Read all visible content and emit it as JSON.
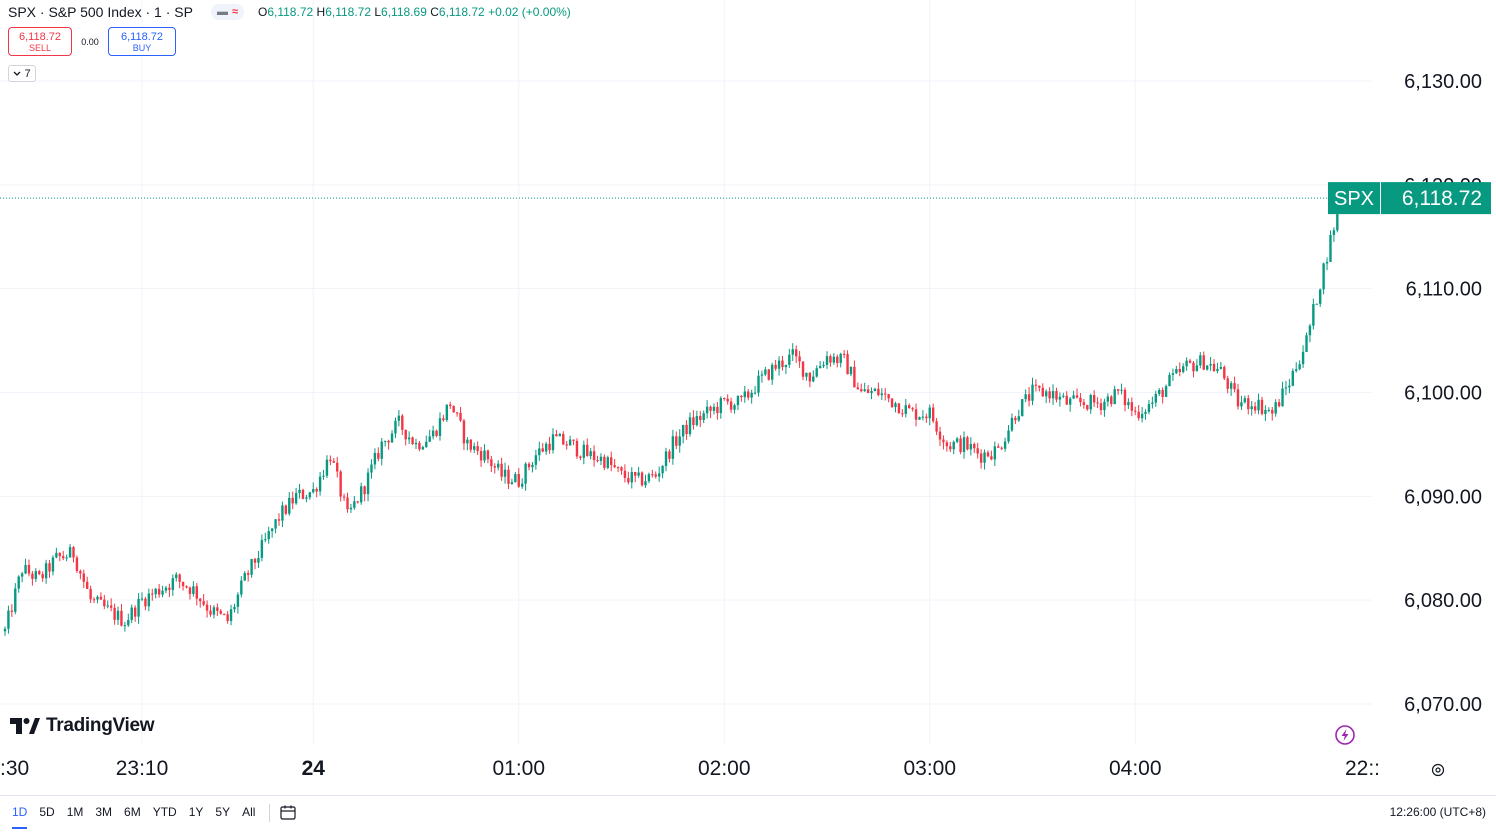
{
  "header": {
    "symbol_title": "SPX · S&P 500 Index · 1 · SP",
    "ohlc": {
      "o_label": "O",
      "o_value": "6,118.72",
      "h_label": "H",
      "h_value": "6,118.72",
      "l_label": "L",
      "l_value": "6,118.69",
      "c_label": "C",
      "c_value": "6,118.72",
      "change": "+0.02 (+0.00%)"
    }
  },
  "trade": {
    "sell_price": "6,118.72",
    "sell_label": "SELL",
    "spread": "0.00",
    "buy_price": "6,118.72",
    "buy_label": "BUY"
  },
  "indicators_toggle": {
    "count": "7"
  },
  "brand": {
    "name": "TradingView"
  },
  "bottom": {
    "ranges": [
      "1D",
      "5D",
      "1M",
      "3M",
      "6M",
      "YTD",
      "1Y",
      "5Y",
      "All"
    ],
    "active_range": "1D",
    "clock": "12:26:00 (UTC+8)"
  },
  "colors": {
    "up": "#089981",
    "down": "#f23645",
    "badge": "#089981",
    "accent": "#2962ff",
    "purple": "#9c27b0"
  },
  "chart_data": {
    "type": "candlestick",
    "interval": "1 minute",
    "y_ticks": [
      6130,
      6120,
      6110,
      6100,
      6090,
      6080,
      6070
    ],
    "y_tick_labels": [
      "6,130.00",
      "6,120.00",
      "6,110.00",
      "6,100.00",
      "6,090.00",
      "6,080.00",
      "6,070.00"
    ],
    "x_tick_labels": [
      ":30",
      "23:10",
      "24",
      "01:00",
      "02:00",
      "03:00",
      "04:00",
      "22::"
    ],
    "grid": true,
    "last_price": 6118.72,
    "last_price_label": "6,118.72",
    "last_price_symbol": "SPX",
    "path": [
      [
        "22:30",
        6077
      ],
      [
        "22:35",
        6083
      ],
      [
        "22:40",
        6082
      ],
      [
        "22:45",
        6084
      ],
      [
        "22:50",
        6084.5
      ],
      [
        "22:55",
        6080
      ],
      [
        "23:00",
        6079
      ],
      [
        "23:05",
        6078
      ],
      [
        "23:10",
        6080
      ],
      [
        "23:15",
        6081
      ],
      [
        "23:20",
        6082
      ],
      [
        "23:25",
        6081
      ],
      [
        "23:30",
        6079
      ],
      [
        "23:35",
        6078
      ],
      [
        "23:40",
        6082
      ],
      [
        "23:45",
        6085
      ],
      [
        "23:50",
        6088
      ],
      [
        "23:55",
        6090
      ],
      [
        "00:00",
        6090.5
      ],
      [
        "00:05",
        6094
      ],
      [
        "00:10",
        6088
      ],
      [
        "00:15",
        6091
      ],
      [
        "00:20",
        6095
      ],
      [
        "00:25",
        6097
      ],
      [
        "00:30",
        6095
      ],
      [
        "00:35",
        6096
      ],
      [
        "00:40",
        6099
      ],
      [
        "00:45",
        6095
      ],
      [
        "00:50",
        6094
      ],
      [
        "00:55",
        6092
      ],
      [
        "01:00",
        6091.5
      ],
      [
        "01:05",
        6094
      ],
      [
        "01:10",
        6095.5
      ],
      [
        "01:15",
        6095
      ],
      [
        "01:20",
        6094
      ],
      [
        "01:25",
        6093.5
      ],
      [
        "01:30",
        6092
      ],
      [
        "01:35",
        6091.5
      ],
      [
        "01:40",
        6092
      ],
      [
        "01:45",
        6095
      ],
      [
        "01:50",
        6097
      ],
      [
        "01:55",
        6098
      ],
      [
        "02:00",
        6099
      ],
      [
        "02:05",
        6099
      ],
      [
        "02:10",
        6101
      ],
      [
        "02:15",
        6102.5
      ],
      [
        "02:20",
        6103.5
      ],
      [
        "02:25",
        6101.5
      ],
      [
        "02:30",
        6103.5
      ],
      [
        "02:35",
        6103
      ],
      [
        "02:40",
        6100
      ],
      [
        "02:45",
        6100
      ],
      [
        "02:50",
        6099
      ],
      [
        "02:55",
        6098
      ],
      [
        "03:00",
        6098
      ],
      [
        "03:05",
        6095
      ],
      [
        "03:10",
        6095
      ],
      [
        "03:15",
        6094
      ],
      [
        "03:20",
        6094.5
      ],
      [
        "03:25",
        6098
      ],
      [
        "03:30",
        6100
      ],
      [
        "03:35",
        6100
      ],
      [
        "03:40",
        6099
      ],
      [
        "03:45",
        6099
      ],
      [
        "03:50",
        6099
      ],
      [
        "03:55",
        6100
      ],
      [
        "04:00",
        6098
      ],
      [
        "04:05",
        6099
      ],
      [
        "04:10",
        6101
      ],
      [
        "04:15",
        6102.5
      ],
      [
        "04:20",
        6103
      ],
      [
        "04:25",
        6102
      ],
      [
        "04:30",
        6099
      ],
      [
        "04:35",
        6099
      ],
      [
        "04:40",
        6098
      ],
      [
        "04:45",
        6101
      ],
      [
        "04:50",
        6105
      ],
      [
        "04:55",
        6112
      ],
      [
        "05:00",
        6118.72
      ]
    ]
  }
}
